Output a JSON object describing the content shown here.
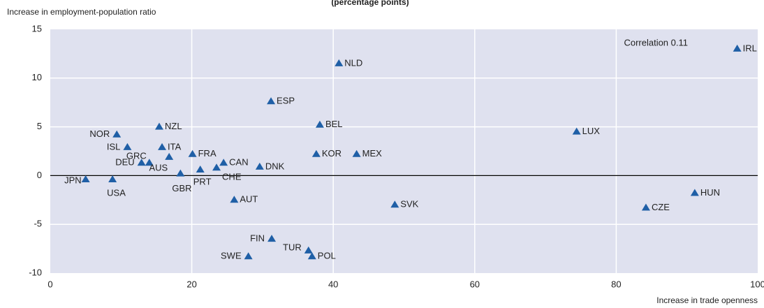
{
  "chart_data": {
    "type": "scatter",
    "title": "(percentage points)",
    "y_label": "Increase in employment-population ratio",
    "x_label": "Increase in trade openness",
    "annotation": "Correlation 0.11",
    "color": "#1f5fa6",
    "grid": true,
    "xlim": [
      0,
      100
    ],
    "xticks": [
      0,
      20,
      40,
      60,
      80,
      100
    ],
    "ylim": [
      -10,
      15
    ],
    "yticks": [
      -10,
      -5,
      0,
      5,
      10,
      15
    ],
    "labels": [
      "IRL",
      "NLD",
      "ESP",
      "BEL",
      "LUX",
      "NZL",
      "NOR",
      "ISL",
      "ITA",
      "GRC",
      "FRA",
      "DEU",
      "AUS",
      "GBR",
      "PRT",
      "CHE",
      "CAN",
      "DNK",
      "KOR",
      "MEX",
      "JPN",
      "USA",
      "AUT",
      "SVK",
      "HUN",
      "CZE",
      "FIN",
      "TUR",
      "POL",
      "SWE"
    ],
    "x": [
      97.1,
      40.8,
      31.2,
      38.1,
      74.4,
      15.4,
      9.4,
      10.9,
      15.8,
      14.0,
      20.1,
      12.9,
      16.8,
      18.4,
      21.2,
      23.5,
      24.5,
      29.6,
      37.6,
      43.3,
      5.0,
      8.8,
      26.0,
      48.7,
      91.1,
      84.2,
      31.3,
      36.5,
      37.0,
      28.0
    ],
    "values": [
      13.0,
      11.5,
      7.6,
      5.2,
      4.5,
      5.0,
      4.2,
      2.9,
      2.9,
      1.3,
      2.2,
      1.3,
      1.9,
      0.2,
      0.6,
      0.8,
      1.3,
      0.9,
      2.2,
      2.2,
      -0.4,
      -0.4,
      -2.5,
      -3.0,
      -1.8,
      -3.3,
      -6.5,
      -7.7,
      -8.3,
      -8.3
    ]
  }
}
